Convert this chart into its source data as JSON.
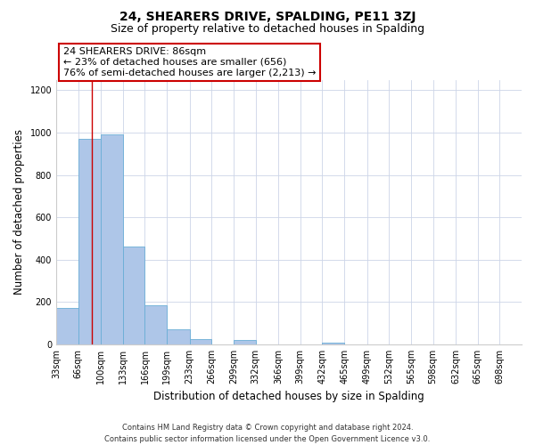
{
  "title": "24, SHEARERS DRIVE, SPALDING, PE11 3ZJ",
  "subtitle": "Size of property relative to detached houses in Spalding",
  "xlabel": "Distribution of detached houses by size in Spalding",
  "ylabel": "Number of detached properties",
  "bin_labels": [
    "33sqm",
    "66sqm",
    "100sqm",
    "133sqm",
    "166sqm",
    "199sqm",
    "233sqm",
    "266sqm",
    "299sqm",
    "332sqm",
    "366sqm",
    "399sqm",
    "432sqm",
    "465sqm",
    "499sqm",
    "532sqm",
    "565sqm",
    "598sqm",
    "632sqm",
    "665sqm",
    "698sqm"
  ],
  "bin_edges": [
    33,
    66,
    100,
    133,
    166,
    199,
    233,
    266,
    299,
    332,
    366,
    399,
    432,
    465,
    499,
    532,
    565,
    598,
    632,
    665,
    698,
    731
  ],
  "bar_heights": [
    170,
    970,
    990,
    460,
    185,
    70,
    25,
    0,
    20,
    0,
    0,
    0,
    10,
    0,
    0,
    0,
    0,
    0,
    0,
    0,
    0
  ],
  "bar_color": "#aec6e8",
  "bar_edgecolor": "#6aaed6",
  "property_size": 86,
  "red_line_color": "#cc0000",
  "annotation_line1": "24 SHEARERS DRIVE: 86sqm",
  "annotation_line2": "← 23% of detached houses are smaller (656)",
  "annotation_line3": "76% of semi-detached houses are larger (2,213) →",
  "annotation_box_edgecolor": "#cc0000",
  "ylim": [
    0,
    1250
  ],
  "yticks": [
    0,
    200,
    400,
    600,
    800,
    1000,
    1200
  ],
  "footer_line1": "Contains HM Land Registry data © Crown copyright and database right 2024.",
  "footer_line2": "Contains public sector information licensed under the Open Government Licence v3.0.",
  "bg_color": "#ffffff",
  "grid_color": "#ccd5e8",
  "title_fontsize": 10,
  "subtitle_fontsize": 9,
  "axis_label_fontsize": 8.5,
  "tick_fontsize": 7,
  "annotation_fontsize": 8,
  "footer_fontsize": 6
}
